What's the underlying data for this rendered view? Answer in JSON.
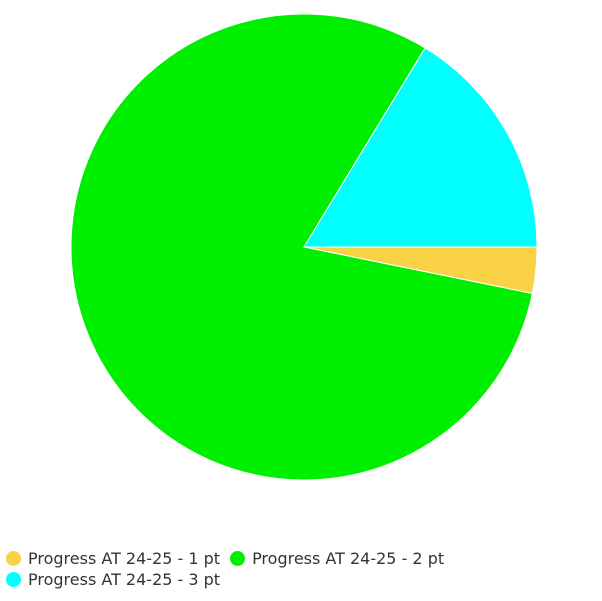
{
  "chart_data": {
    "type": "pie",
    "title": "",
    "start_angle": "3 o'clock",
    "direction": "clockwise",
    "legend_position": "bottom-left",
    "categories": [
      "Progress AT 24-25 - 1 pt",
      "Progress AT 24-25 - 2 pt",
      "Progress AT 24-25 - 3 pt"
    ],
    "values": [
      3.2,
      80.5,
      16.3
    ],
    "colors": [
      "#f9d246",
      "#00ee00",
      "#00ffff"
    ]
  },
  "legend": {
    "items": [
      {
        "label": "Progress AT 24-25 - 1 pt",
        "color": "#f9d246"
      },
      {
        "label": "Progress AT 24-25 - 2 pt",
        "color": "#00ee00"
      },
      {
        "label": "Progress AT 24-25 - 3 pt",
        "color": "#00ffff"
      }
    ]
  }
}
